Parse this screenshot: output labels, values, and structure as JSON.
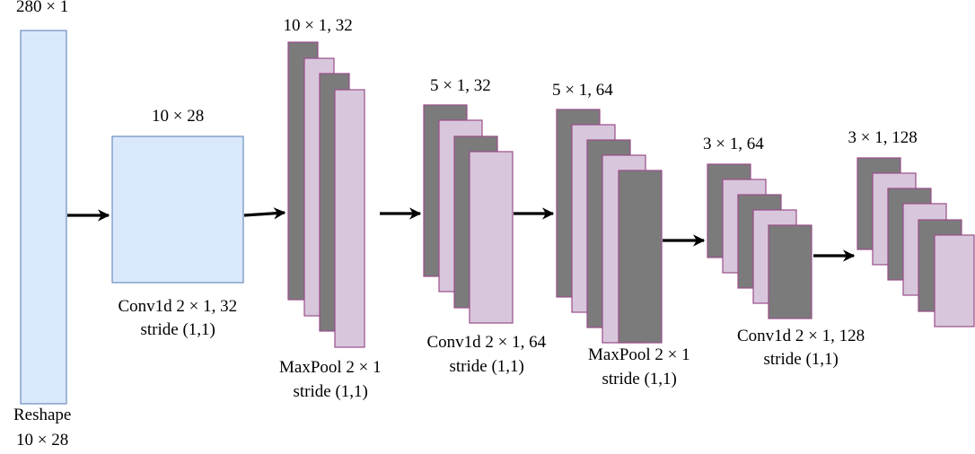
{
  "colors": {
    "blue_fill": "#dae8fc",
    "blue_stroke": "#6c8ebf",
    "pink_fill": "#d8c7dc",
    "gray_fill": "#7b7b7b",
    "purple_stroke": "#9a4d8a",
    "arrow": "#000000"
  },
  "labels": {
    "input_dims": "280 × 1",
    "reshape_line1": "Reshape",
    "reshape_line2": "10 × 28",
    "reshaped_dims": "10 × 28",
    "conv1_line1": "Conv1d 2 × 1, 32",
    "conv1_line2": "stride (1,1)",
    "conv1_out_dims": "10 × 1, 32",
    "pool1_line1": "MaxPool 2 × 1",
    "pool1_line2": "stride (1,1)",
    "pool1_out_dims": "5 × 1, 32",
    "conv2_line1": "Conv1d 2 × 1, 64",
    "conv2_line2": "stride (1,1)",
    "conv2_out_dims": "5 × 1, 64",
    "pool2_line1": "MaxPool 2 × 1",
    "pool2_line2": "stride (1,1)",
    "pool2_out_dims": "3 × 1, 64",
    "conv3_line1": "Conv1d 2 × 1, 128",
    "conv3_line2": "stride (1,1)",
    "conv3_out_dims": "3 × 1, 128"
  }
}
